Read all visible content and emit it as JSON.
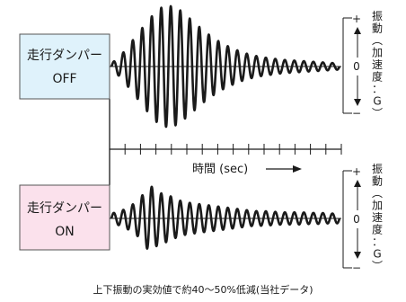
{
  "chart_data": [
    {
      "type": "line",
      "label_line1": "走行ダンパー",
      "label_line2": "OFF",
      "box_color": "#dff2fb",
      "y_axis": {
        "plus": "+",
        "zero": "0",
        "minus": "−",
        "label": [
          "振",
          "動",
          "︵",
          "加",
          "速",
          "度",
          "：",
          "G",
          "︶"
        ]
      },
      "peak_cycle": 6,
      "envelope": [
        0.05,
        0.18,
        0.38,
        0.58,
        0.78,
        0.95,
        1.0,
        0.95,
        0.82,
        0.68,
        0.55,
        0.44,
        0.35,
        0.28,
        0.22,
        0.18,
        0.15,
        0.13,
        0.11,
        0.1,
        0.09,
        0.08,
        0.07,
        0.06,
        0.05
      ]
    },
    {
      "type": "line",
      "label_line1": "走行ダンパー",
      "label_line2": "ON",
      "box_color": "#fbe1ec",
      "y_axis": {
        "plus": "+",
        "zero": "0",
        "minus": "−",
        "label": [
          "振",
          "動",
          "︵",
          "加",
          "速",
          "度",
          "：",
          "G",
          "︶"
        ]
      },
      "peak_cycle": 4,
      "envelope": [
        0.08,
        0.12,
        0.2,
        0.32,
        0.55,
        0.42,
        0.38,
        0.3,
        0.26,
        0.24,
        0.22,
        0.2,
        0.18,
        0.16,
        0.14,
        0.12,
        0.12,
        0.11,
        0.1,
        0.1,
        0.1,
        0.09,
        0.09,
        0.08,
        0.08
      ]
    }
  ],
  "time_axis": {
    "label": "時間 (sec)",
    "arrow": "⟶",
    "tick_count": 16
  },
  "caption": "上下振動の実効値で約40〜50%低減(当社データ)",
  "colors": {
    "line": "#1a1a1a",
    "off_box": "#dff2fb",
    "on_box": "#fbe1ec"
  }
}
